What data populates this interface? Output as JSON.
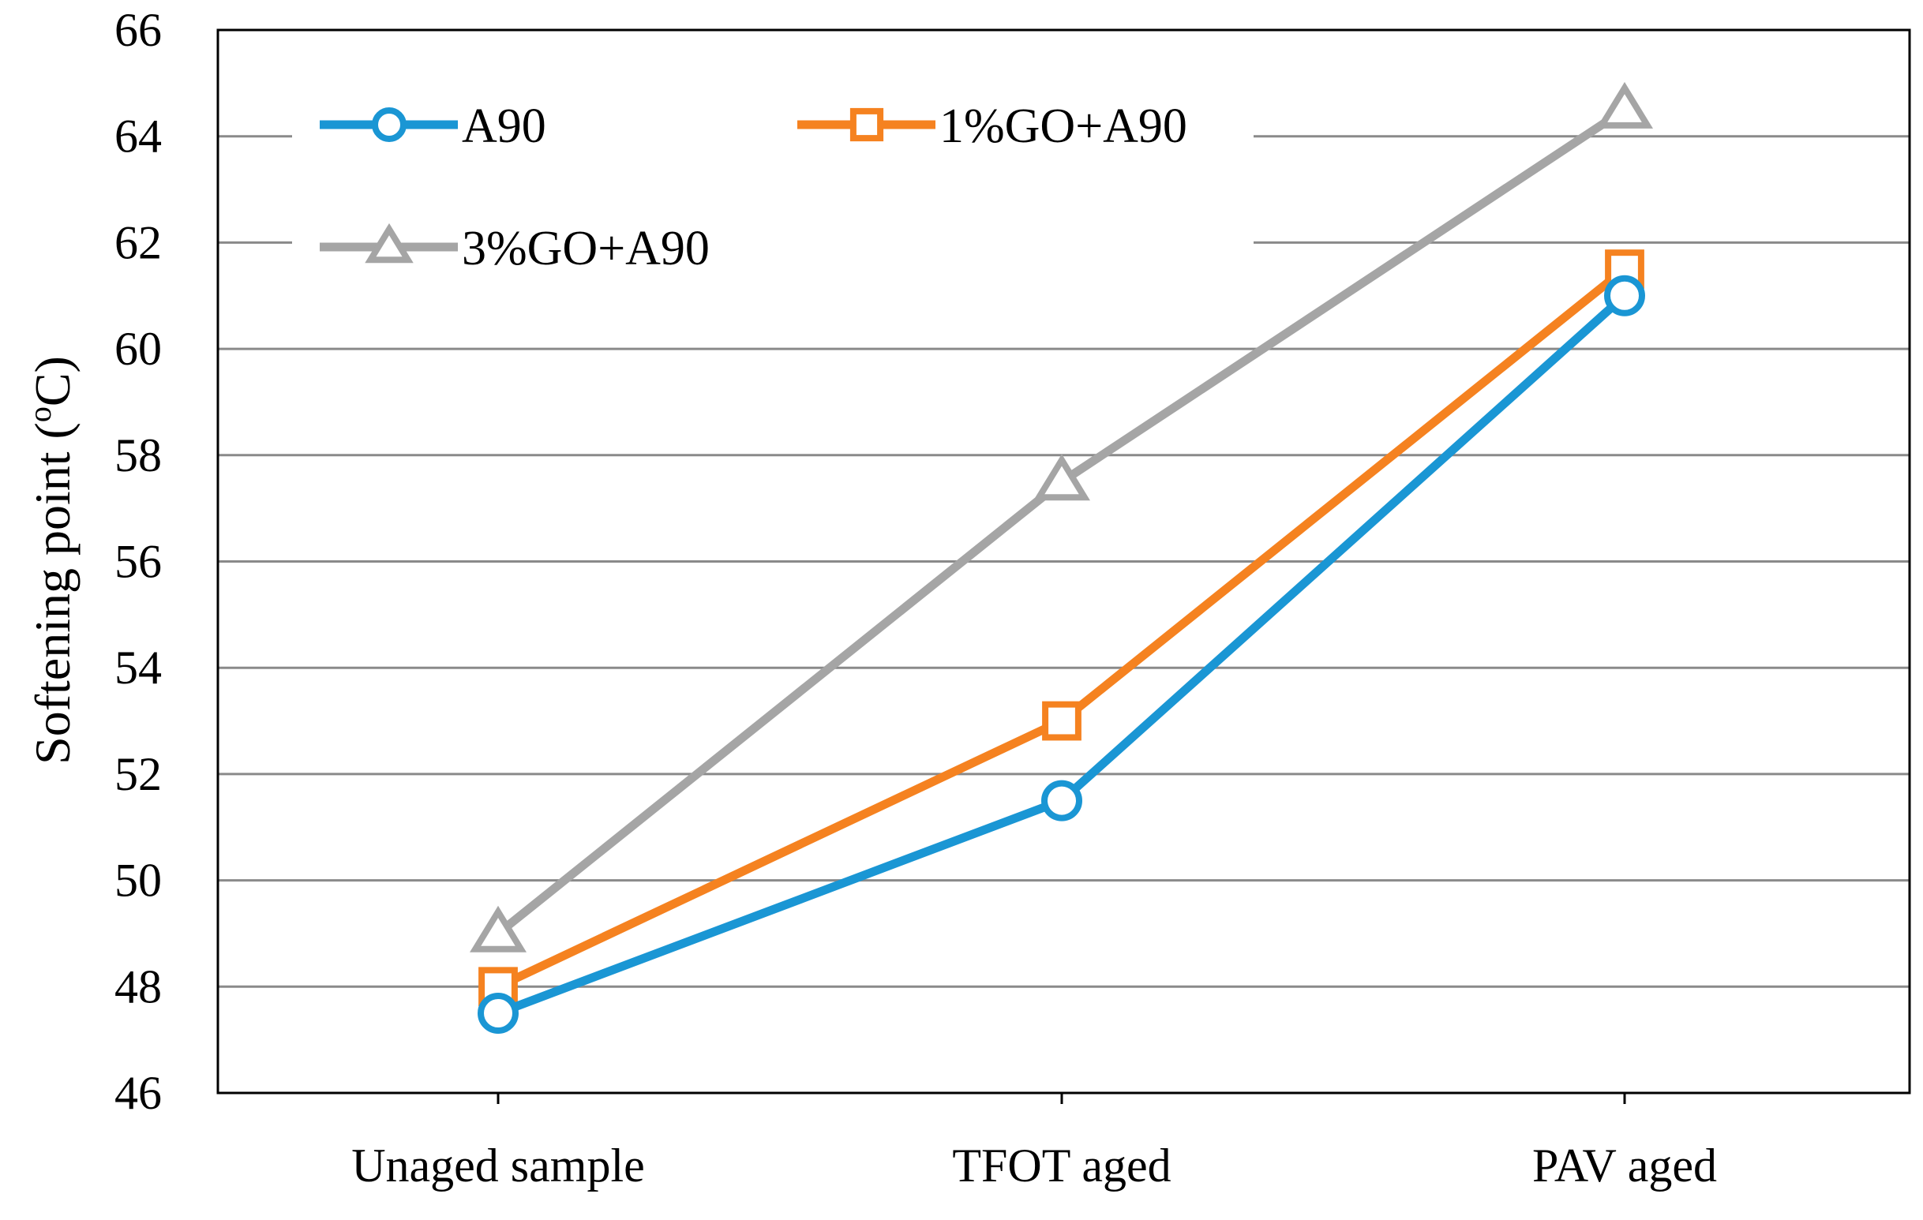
{
  "chart_data": {
    "type": "line",
    "title": "",
    "xlabel": "",
    "ylabel": "Softening point (°C)",
    "ylabel_prefix": "Softening point (",
    "ylabel_degree": "o",
    "ylabel_unit": "C)",
    "ylim": [
      46,
      66
    ],
    "yticks": [
      46,
      48,
      50,
      52,
      54,
      56,
      58,
      60,
      62,
      64,
      66
    ],
    "grid": true,
    "legend_position": "top-left",
    "categories": [
      "Unaged sample",
      "TFOT aged",
      "PAV aged"
    ],
    "series": [
      {
        "name": "A90",
        "values": [
          47.5,
          51.5,
          61.0
        ],
        "color": "#1a96d4",
        "marker": "circle"
      },
      {
        "name": "1%GO+A90",
        "values": [
          48.0,
          53.0,
          61.5
        ],
        "color": "#f58220",
        "marker": "square"
      },
      {
        "name": "3%GO+A90",
        "values": [
          49.0,
          57.5,
          64.5
        ],
        "color": "#a5a5a5",
        "marker": "triangle"
      }
    ]
  }
}
